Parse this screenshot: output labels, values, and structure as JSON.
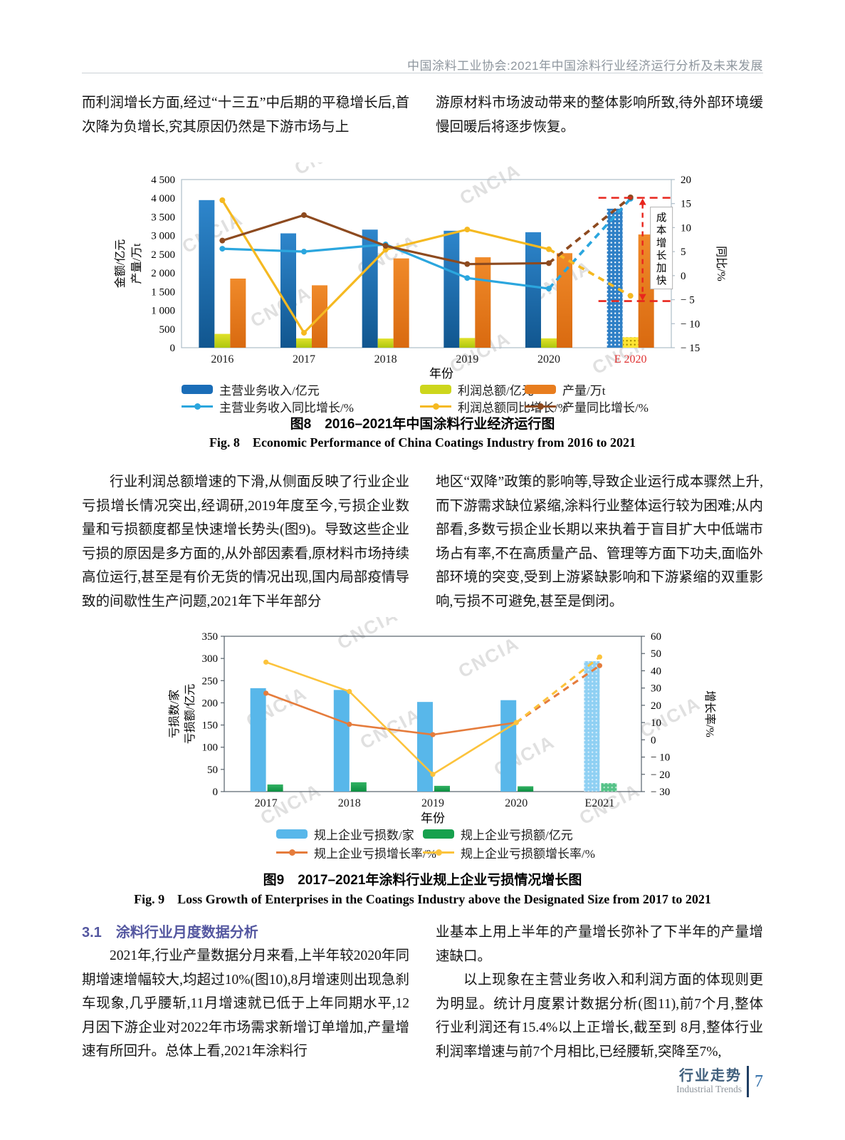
{
  "page": {
    "header": "中国涂料工业协会:2021年中国涂料行业经济运行分析及未来发展",
    "watermark": "CNCIA",
    "footer": {
      "zh": "行业走势",
      "en": "Industrial Trends",
      "page_number": "7"
    }
  },
  "paragraphs": {
    "top_left": "而利润增长方面,经过“十三五”中后期的平稳增长后,首次降为负增长,究其原因仍然是下游市场与上",
    "top_right": "游原材料市场波动带来的整体影响所致,待外部环境缓慢回暖后将逐步恢复。",
    "mid_left": "行业利润总额增速的下滑,从侧面反映了行业企业亏损增长情况突出,经调研,2019年度至今,亏损企业数量和亏损额度都呈快速增长势头(图9)。导致这些企业亏损的原因是多方面的,从外部因素看,原材料市场持续高位运行,甚至是有价无货的情况出现,国内局部疫情导致的间歇性生产问题,2021年下半年部分",
    "mid_right": "地区“双降”政策的影响等,导致企业运行成本骤然上升,而下游需求缺位紧缩,涂料行业整体运行较为困难;从内部看,多数亏损企业长期以来执着于盲目扩大中低端市场占有率,不在高质量产品、管理等方面下功夫,面临外部环境的突变,受到上游紧缺影响和下游紧缩的双重影响,亏损不可避免,甚至是倒闭。",
    "section_heading": "3.1　涂料行业月度数据分析",
    "bottom_left": "2021年,行业产量数据分月来看,上半年较2020年同期增速增幅较大,均超过10%(图10),8月增速则出现急刹车现象,几乎腰斩,11月增速就已低于上年同期水平,12月因下游企业对2022年市场需求新增订单增加,产量增速有所回升。总体上看,2021年涂料行",
    "bottom_right_1": "业基本上用上半年的产量增长弥补了下半年的产量增速缺口。",
    "bottom_right_2": "以上现象在主营业务收入和利润方面的体现则更为明显。统计月度累计数据分析(图11),前7个月,整体行业利润还有15.4%以上正增长,截至到 8月,整体行业利润率增速与前7个月相比,已经腰斩,突降至7%,"
  },
  "figures": {
    "fig8": {
      "caption_zh": "图8　2016–2021年中国涂料行业经济运行图",
      "caption_en": "Fig. 8　Economic Performance of China Coatings Industry from 2016 to 2021",
      "chart_data": {
        "type": "bar+line",
        "categories": [
          "2016",
          "2017",
          "2018",
          "2019",
          "2020",
          "E 2020"
        ],
        "estimate_category": "E 2020",
        "bar_series": [
          {
            "name": "主营业务收入/亿元",
            "color": "#1a6db8",
            "gradient": [
              "#2e86cc",
              "#11568f"
            ],
            "values": [
              3950,
              3060,
              3160,
              3130,
              3090,
              3720
            ],
            "estimate_fill": {
              "base": "#2f80c6",
              "dot": "#ffffff"
            }
          },
          {
            "name": "利润总额/亿元",
            "color": "#cdd61c",
            "gradient": [
              "#e0e12a",
              "#aec70f"
            ],
            "values": [
              370,
              250,
              245,
              260,
              250,
              280
            ],
            "estimate_fill": {
              "base": "#ffe433",
              "dot": "#9c8700"
            }
          },
          {
            "name": "产量/万t",
            "color": "#e87d1e",
            "gradient": [
              "#f08a2a",
              "#d96a10"
            ],
            "values": [
              1850,
              1670,
              2390,
              2420,
              2530,
              3030
            ]
          }
        ],
        "line_series": [
          {
            "name": "主营业务收入同比增长/%",
            "color": "#2ba6de",
            "values": [
              5.6,
              5.0,
              6.5,
              -0.5,
              -2.7,
              16.0
            ]
          },
          {
            "name": "利润总额同比增长/%",
            "color": "#f5b921",
            "values": [
              15.7,
              -11.9,
              5.4,
              9.6,
              5.5,
              -4.2
            ]
          },
          {
            "name": "产量同比增长/%",
            "color": "#8d4a1f",
            "values": [
              7.3,
              12.6,
              6.2,
              2.4,
              2.6,
              16.3
            ]
          }
        ],
        "left_axis": {
          "label_line1": "金额/亿元",
          "label_line2": "产量/万t",
          "min": 0,
          "max": 4500,
          "step": 500
        },
        "right_axis": {
          "label": "同比/%",
          "min": -15,
          "max": 20,
          "step": 5
        },
        "xlabel": "年份",
        "annotation": {
          "text": "成本增长加快",
          "top_value": 16.2,
          "bottom_value": -5.3,
          "color": "#e8261d"
        }
      }
    },
    "fig9": {
      "caption_zh": "图9　2017–2021年涂料行业规上企业亏损情况增长图",
      "caption_en": "Fig. 9　Loss Growth of Enterprises in the Coatings Industry above the Designated Size from 2017 to 2021",
      "chart_data": {
        "type": "bar+line",
        "categories": [
          "2017",
          "2018",
          "2019",
          "2020",
          "E2021"
        ],
        "estimate_category": "E2021",
        "bar_series": [
          {
            "name": "规上企业亏损数/家",
            "color": "#58b7ea",
            "values": [
              233,
              229,
              202,
              206,
              294
            ],
            "estimate_fill": {
              "base": "#8fd0f3",
              "dot": "#d8eefb"
            }
          },
          {
            "name": "规上企业亏损额/亿元",
            "color": "#17a14e",
            "gradient": [
              "#33b263",
              "#0c8f41"
            ],
            "values": [
              16,
              21,
              13,
              12,
              19
            ],
            "estimate_fill": {
              "base": "#57c389",
              "dot": "#bfe9d2"
            }
          }
        ],
        "line_series": [
          {
            "name": "规上企业亏损增长率/%",
            "color": "#e57c3c",
            "values": [
              27,
              9,
              3,
              10,
              43
            ]
          },
          {
            "name": "规上企业亏损额增长率/%",
            "color": "#fcc33c",
            "values": [
              45,
              28,
              -20,
              10,
              48
            ]
          }
        ],
        "left_axis": {
          "label_line1": "亏损数/家",
          "label_line2": "亏损额/亿元",
          "min": 0,
          "max": 350,
          "step": 50
        },
        "right_axis": {
          "label": "增长率/%",
          "min": -30,
          "max": 60,
          "step": 10
        },
        "xlabel": "年份"
      }
    }
  }
}
